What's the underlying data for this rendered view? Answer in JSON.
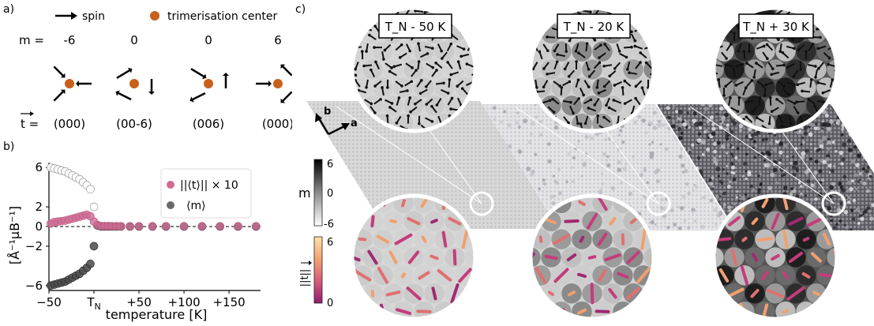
{
  "panel_a": {
    "label": "a)",
    "legend_spin": "spin",
    "legend_center": "trimerisation center",
    "m_label": "m =",
    "m_values": [
      "-6",
      "0",
      "0",
      "6"
    ],
    "t_label": "t =",
    "t_values": [
      "(000)",
      "(00-6)",
      "(006)",
      "(000)"
    ],
    "center_color": "#c8601a"
  },
  "panel_b": {
    "label": "b)",
    "chart_data": {
      "type": "scatter",
      "ylabel": "[Å⁻¹μB⁻¹]",
      "xlabel": "temperature [K]",
      "xticks": [
        "-50",
        "T_N",
        "+50",
        "+100",
        "+150"
      ],
      "yticks": [
        "6",
        "2",
        "0",
        "-2",
        "-6"
      ],
      "ylim": [
        -6.5,
        6.5
      ],
      "xlim": [
        -50,
        185
      ],
      "legend_placement": "top-right",
      "series": [
        {
          "name": "||⟨t⟩|| × 10",
          "color": "#d06b93",
          "x": [
            -48,
            -44,
            -40,
            -36,
            -32,
            -28,
            -24,
            -20,
            -16,
            -12,
            -8,
            -4,
            0,
            4,
            8,
            12,
            16,
            20,
            25,
            30,
            40,
            50,
            65,
            80,
            100,
            120,
            140,
            160,
            180
          ],
          "y": [
            0.3,
            0.45,
            0.5,
            0.55,
            0.6,
            0.7,
            0.8,
            0.9,
            1.0,
            1.1,
            1.2,
            1.05,
            0.5,
            0.15,
            0.05,
            0.05,
            0.05,
            0.04,
            0.04,
            0.03,
            0.03,
            0.03,
            0.03,
            0.03,
            0.03,
            0.03,
            0.03,
            0.03,
            0.03
          ]
        },
        {
          "name": "⟨m⟩",
          "color": "#6a6a6a",
          "x": [
            -48,
            -44,
            -40,
            -36,
            -32,
            -28,
            -24,
            -20,
            -16,
            -12,
            -8,
            -4,
            0,
            4,
            8,
            12,
            16,
            20,
            25,
            30,
            40,
            50,
            65,
            80,
            100,
            120,
            140,
            160,
            180
          ],
          "y": [
            -6,
            -5.9,
            -5.8,
            -5.7,
            -5.6,
            -5.4,
            -5.2,
            -5.0,
            -4.8,
            -4.5,
            -4.2,
            -3.8,
            -2.0,
            0.1,
            0.0,
            0.0,
            0.0,
            0.0,
            0.0,
            0.0,
            0.0,
            0.0,
            0.0,
            0.0,
            0.0,
            0.0,
            0.0,
            0.0,
            0.0
          ]
        },
        {
          "name": "",
          "color": "#ffffff",
          "x": [
            -48,
            -44,
            -40,
            -36,
            -32,
            -28,
            -24,
            -20,
            -16,
            -12,
            -8,
            -4,
            0
          ],
          "y": [
            6,
            5.9,
            5.8,
            5.7,
            5.6,
            5.4,
            5.2,
            5.0,
            4.8,
            4.5,
            4.2,
            3.8,
            2.0
          ]
        }
      ]
    }
  },
  "panel_c": {
    "label": "c)",
    "axes": {
      "b": "b",
      "a": "a"
    },
    "slabs": [
      {
        "title": "T_N - 50 K",
        "name": "tn-minus-50"
      },
      {
        "title": "T_N - 20 K",
        "name": "tn-minus-20"
      },
      {
        "title": "T_N + 30 K",
        "name": "tn-plus-30"
      }
    ],
    "colorbar_m": {
      "label": "m",
      "ticks": [
        "6",
        "0",
        "-6"
      ]
    },
    "colorbar_t": {
      "label": "||t||",
      "ticks": [
        "6",
        "0"
      ]
    }
  }
}
